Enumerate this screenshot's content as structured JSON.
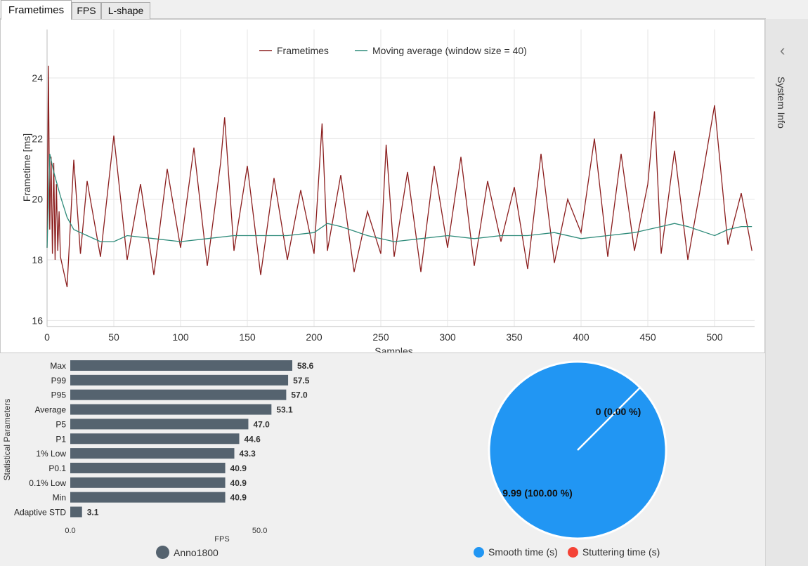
{
  "tabs": [
    {
      "label": "Frametimes",
      "active": true
    },
    {
      "label": "FPS",
      "active": false
    },
    {
      "label": "L-shape",
      "active": false
    }
  ],
  "sidebar": {
    "label": "System Info",
    "chevron_icon": "chevron-left-icon"
  },
  "colors": {
    "frametime": "#8b1e1e",
    "moving_average": "#2e8b7a",
    "bar": "#55636f",
    "smooth": "#2196f3",
    "stutter": "#f44336",
    "grid": "#e6e6e6"
  },
  "chart_data": [
    {
      "type": "line",
      "xlabel": "Samples",
      "ylabel": "Frametime [ms]",
      "xlim": [
        0,
        530
      ],
      "ylim": [
        15.8,
        25.6
      ],
      "xticks": [
        0,
        50,
        100,
        150,
        200,
        250,
        300,
        350,
        400,
        450,
        500
      ],
      "yticks": [
        16,
        18,
        20,
        22,
        24
      ],
      "grid": true,
      "legend_position": "top-center",
      "series": [
        {
          "name": "Frametimes",
          "x": [
            0,
            1,
            2,
            3,
            4,
            5,
            6,
            7,
            8,
            9,
            10,
            15,
            20,
            25,
            30,
            40,
            50,
            60,
            70,
            80,
            90,
            100,
            110,
            120,
            130,
            133,
            140,
            150,
            160,
            170,
            180,
            190,
            200,
            206,
            210,
            220,
            230,
            240,
            250,
            254,
            260,
            270,
            280,
            290,
            300,
            310,
            320,
            330,
            340,
            350,
            360,
            370,
            380,
            390,
            400,
            410,
            420,
            430,
            440,
            450,
            455,
            460,
            470,
            480,
            490,
            500,
            510,
            520,
            528
          ],
          "y": [
            18.4,
            24.4,
            19.0,
            21.4,
            18.2,
            21.2,
            18.0,
            20.5,
            18.3,
            19.6,
            18.1,
            17.1,
            21.3,
            18.2,
            20.6,
            18.1,
            22.1,
            18.0,
            20.5,
            17.5,
            21.0,
            18.4,
            21.7,
            17.8,
            21.2,
            22.7,
            18.3,
            21.1,
            17.5,
            20.7,
            18.0,
            20.3,
            18.2,
            22.5,
            18.3,
            20.8,
            17.6,
            19.6,
            18.2,
            21.8,
            18.1,
            20.9,
            17.6,
            21.1,
            18.4,
            21.4,
            17.8,
            20.6,
            18.6,
            20.4,
            17.7,
            21.5,
            17.9,
            20.0,
            18.9,
            22.0,
            18.1,
            21.5,
            18.3,
            20.5,
            22.9,
            18.2,
            21.6,
            18.0,
            20.5,
            23.1,
            18.5,
            20.2,
            18.3
          ]
        },
        {
          "name": "Moving average (window size = 40)",
          "x": [
            0,
            2,
            5,
            10,
            15,
            20,
            25,
            30,
            40,
            50,
            60,
            80,
            100,
            120,
            140,
            160,
            180,
            200,
            210,
            220,
            240,
            260,
            280,
            300,
            320,
            340,
            360,
            380,
            400,
            420,
            440,
            460,
            470,
            480,
            500,
            510,
            520,
            528
          ],
          "y": [
            18.4,
            21.5,
            20.9,
            20.1,
            19.4,
            19.0,
            18.9,
            18.8,
            18.6,
            18.6,
            18.8,
            18.7,
            18.6,
            18.7,
            18.8,
            18.8,
            18.8,
            18.9,
            19.2,
            19.1,
            18.8,
            18.6,
            18.7,
            18.8,
            18.7,
            18.8,
            18.8,
            18.9,
            18.7,
            18.8,
            18.9,
            19.1,
            19.2,
            19.1,
            18.8,
            19.0,
            19.1,
            19.1
          ]
        }
      ]
    },
    {
      "type": "bar",
      "orientation": "horizontal",
      "ylabel": "Statistical Parameters",
      "xlabel": "FPS",
      "xticks": [
        "0.0",
        "50.0"
      ],
      "xlim": [
        0,
        58.6
      ],
      "categories": [
        "Max",
        "P99",
        "P95",
        "Average",
        "P5",
        "P1",
        "1% Low",
        "P0.1",
        "0.1% Low",
        "Min",
        "Adaptive STD"
      ],
      "values": [
        58.6,
        57.5,
        57.0,
        53.1,
        47.0,
        44.6,
        43.3,
        40.9,
        40.9,
        40.9,
        3.1
      ],
      "labels": [
        "58.6",
        "57.5",
        "57.0",
        "53.1",
        "47.0",
        "44.6",
        "43.3",
        "40.9",
        "40.9",
        "40.9",
        "3.1"
      ],
      "series": [
        {
          "name": "Anno1800"
        }
      ],
      "legend_position": "bottom"
    },
    {
      "type": "pie",
      "slices": [
        {
          "name": "Smooth time (s)",
          "value": 9.99,
          "label": "9.99 (100.00 %)"
        },
        {
          "name": "Stuttering time (s)",
          "value": 0,
          "label": "0 (0.00 %)"
        }
      ],
      "legend_position": "bottom"
    }
  ]
}
